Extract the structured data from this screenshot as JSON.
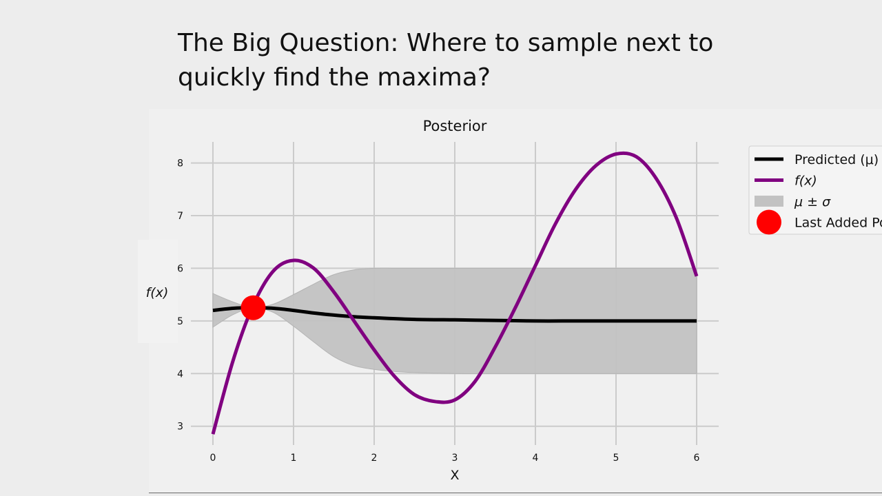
{
  "slide": {
    "title": "The Big Question: Where to sample next to quickly find the maxima?"
  },
  "chart_data": {
    "type": "line",
    "title": "Posterior",
    "xlabel": "X",
    "ylabel": "f(x)",
    "xlim": [
      0,
      6
    ],
    "ylim": [
      2.8,
      8.4
    ],
    "xticks": [
      0,
      1,
      2,
      3,
      4,
      5,
      6
    ],
    "yticks": [
      3,
      4,
      5,
      6,
      7,
      8
    ],
    "grid": true,
    "legend_position": "right",
    "legend": [
      {
        "label": "Predicted (μ)",
        "kind": "line",
        "color": "#000000"
      },
      {
        "label": "f(x)",
        "kind": "line",
        "color": "#800080"
      },
      {
        "label": "μ ± σ",
        "kind": "patch",
        "color": "#c2c2c2"
      },
      {
        "label": "Last Added Po",
        "kind": "marker",
        "color": "#ff0000"
      }
    ],
    "series": [
      {
        "name": "Predicted (μ)",
        "color": "#000000",
        "x": [
          0,
          0.25,
          0.5,
          0.75,
          1.0,
          1.25,
          1.5,
          1.75,
          2.0,
          2.5,
          3.0,
          3.5,
          4.0,
          4.5,
          5.0,
          5.5,
          6.0
        ],
        "y": [
          5.2,
          5.24,
          5.25,
          5.24,
          5.2,
          5.15,
          5.11,
          5.08,
          5.06,
          5.03,
          5.02,
          5.01,
          5.0,
          5.0,
          5.0,
          5.0,
          5.0
        ]
      },
      {
        "name": "f(x)",
        "color": "#800080",
        "x": [
          0,
          0.25,
          0.5,
          0.75,
          1.0,
          1.25,
          1.5,
          1.75,
          2.0,
          2.25,
          2.5,
          2.75,
          3.0,
          3.25,
          3.5,
          3.75,
          4.0,
          4.25,
          4.5,
          4.75,
          5.0,
          5.25,
          5.5,
          5.75,
          6.0
        ],
        "y": [
          2.85,
          4.25,
          5.3,
          5.95,
          6.15,
          6.0,
          5.55,
          5.0,
          4.45,
          3.95,
          3.6,
          3.47,
          3.5,
          3.85,
          4.5,
          5.25,
          6.05,
          6.85,
          7.5,
          7.95,
          8.17,
          8.12,
          7.7,
          6.95,
          5.85
        ]
      }
    ],
    "band": {
      "name": "μ ± σ",
      "color": "#c2c2c2",
      "x": [
        0,
        0.25,
        0.5,
        0.75,
        1.0,
        1.25,
        1.5,
        1.75,
        2.0,
        2.25,
        2.5,
        3.0,
        3.5,
        4.0,
        4.5,
        5.0,
        5.5,
        6.0
      ],
      "upper": [
        5.52,
        5.36,
        5.25,
        5.32,
        5.5,
        5.7,
        5.88,
        5.97,
        6.0,
        6.0,
        6.0,
        6.0,
        6.0,
        6.0,
        6.0,
        6.0,
        6.0,
        6.0
      ],
      "lower": [
        4.88,
        5.12,
        5.25,
        5.16,
        4.9,
        4.6,
        4.32,
        4.15,
        4.08,
        4.04,
        4.02,
        4.0,
        4.0,
        4.0,
        4.0,
        4.0,
        4.0,
        4.0
      ]
    },
    "points": [
      {
        "name": "Last Added Po",
        "x": 0.5,
        "y": 5.25,
        "color": "#ff0000"
      }
    ]
  }
}
